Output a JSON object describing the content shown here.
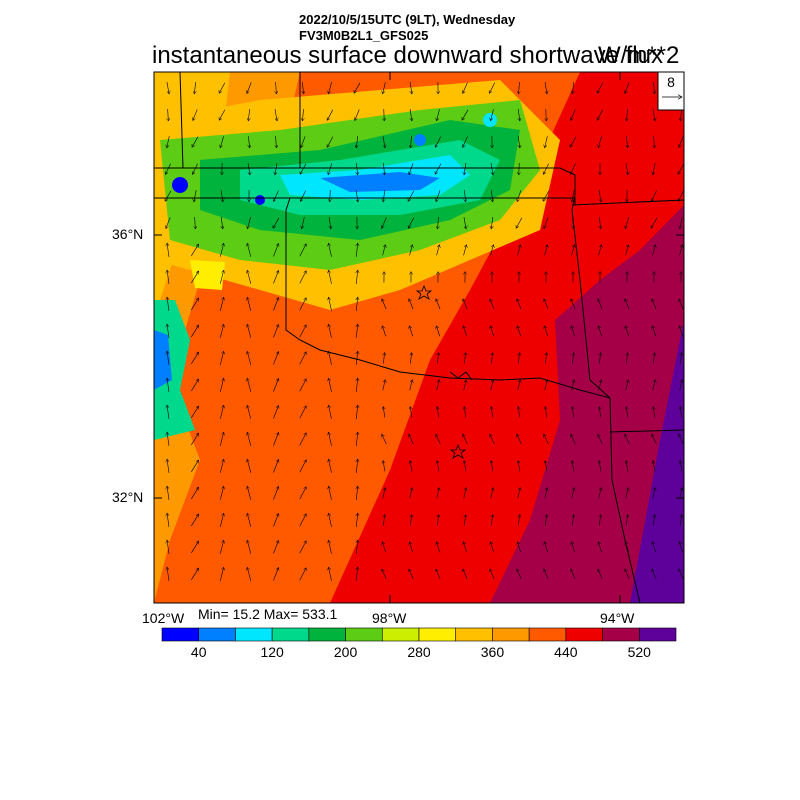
{
  "header": {
    "datetime": "2022/10/5/15UTC (9LT), Wednesday",
    "model": "FV3M0B2L1_GFS025",
    "title": "instantaneous surface downward shortwave flux",
    "units": "W/m**2"
  },
  "axes": {
    "lat_labels": [
      "36°N",
      "32°N"
    ],
    "lon_labels": [
      "102°W",
      "98°W",
      "94°W"
    ]
  },
  "stats": {
    "text": "Min= 15.2 Max= 533.1",
    "min": 15.2,
    "max": 533.1
  },
  "vector_ref": {
    "label": "8"
  },
  "colorbar": {
    "colors": [
      "#0000ff",
      "#0080ff",
      "#00e6ff",
      "#00d98c",
      "#00b33c",
      "#5ccc14",
      "#ccee00",
      "#ffee00",
      "#ffc000",
      "#ff9900",
      "#ff5a00",
      "#ee0000",
      "#a50047",
      "#5e009a"
    ],
    "tick_labels": [
      "40",
      "120",
      "200",
      "280",
      "360",
      "440",
      "520"
    ]
  },
  "markers": [
    {
      "name": "star-oklahoma-city"
    },
    {
      "name": "star-dallas"
    }
  ]
}
